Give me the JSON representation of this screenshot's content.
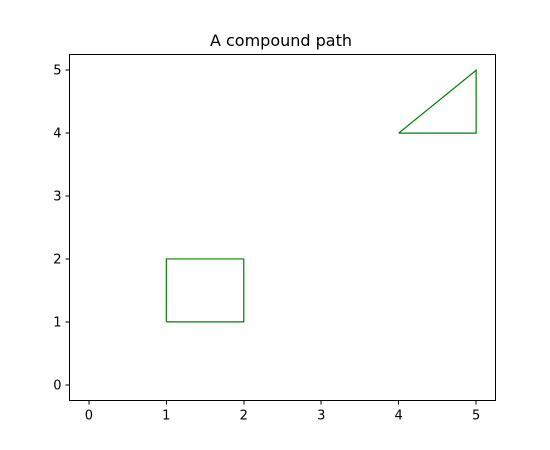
{
  "chart_data": {
    "type": "line",
    "title": "A compound path",
    "xlabel": "",
    "ylabel": "",
    "xlim": [
      -0.25,
      5.25
    ],
    "ylim": [
      -0.25,
      5.25
    ],
    "xticks": [
      0,
      1,
      2,
      3,
      4,
      5
    ],
    "yticks": [
      0,
      1,
      2,
      3,
      4,
      5
    ],
    "xtick_labels": [
      "0",
      "1",
      "2",
      "3",
      "4",
      "5"
    ],
    "ytick_labels": [
      "0",
      "1",
      "2",
      "3",
      "4",
      "5"
    ],
    "grid": false,
    "series": [
      {
        "shape": "rectangle",
        "x": [
          1,
          2,
          2,
          1,
          1
        ],
        "y": [
          1,
          1,
          2,
          2,
          1
        ]
      },
      {
        "shape": "triangle",
        "x": [
          4,
          5,
          5,
          4
        ],
        "y": [
          4,
          4,
          5,
          4
        ]
      }
    ],
    "colors": {
      "edge": "#008000"
    }
  }
}
